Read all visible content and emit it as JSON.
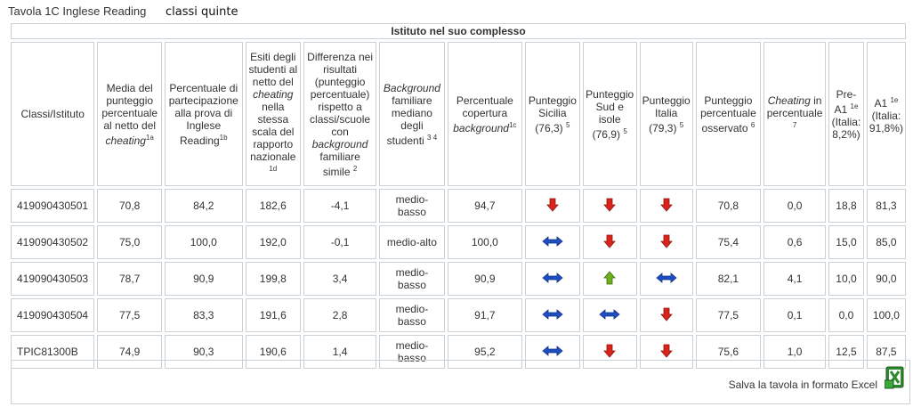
{
  "header": {
    "title": "Tavola 1C Inglese Reading",
    "subtitle": "classi quinte"
  },
  "table": {
    "group_header": "Istituto nel suo complesso",
    "columns": [
      {
        "html": "Classi/Istituto"
      },
      {
        "html": "Media del punteggio percentuale al netto del <i>cheating</i><sup>1a</sup>"
      },
      {
        "html": "Percentuale di partecipazione alla prova di Inglese Reading<sup>1b</sup>"
      },
      {
        "html": "Esiti degli studenti al netto del <i>cheating</i> nella stessa scala del rapporto nazionale <sup>1d</sup>"
      },
      {
        "html": "Differenza nei risultati (punteggio percentuale) rispetto a classi/scuole con <i>background</i> familiare simile <sup>2</sup>"
      },
      {
        "html": "<i>Background</i> familiare mediano degli studenti <sup>3 4</sup>"
      },
      {
        "html": "Percentuale copertura <i>background</i><sup>1c</sup>"
      },
      {
        "html": "Punteggio Sicilia (76,3) <sup>5</sup>"
      },
      {
        "html": "Punteggio Sud e isole (76,9) <sup>5</sup>"
      },
      {
        "html": "Punteggio Italia (79,3) <sup>5</sup>"
      },
      {
        "html": "Punteggio percentuale osservato <sup>6</sup>"
      },
      {
        "html": "<i>Cheating</i> in percentuale <sup>7</sup>"
      },
      {
        "html": "Pre-A1 <sup>1e</sup> (Italia: 8,2%)"
      },
      {
        "html": "A1 <sup>1e</sup> (Italia: 91,8%)"
      }
    ],
    "rows": [
      {
        "classe": "419090430501",
        "media": "70,8",
        "partecipazione": "84,2",
        "esiti": "182,6",
        "differenza": "-4,1",
        "background": "medio-basso",
        "copertura": "94,7",
        "sicilia": "down",
        "sud": "down",
        "italia": "down",
        "osservato": "70,8",
        "cheating": "0,0",
        "prea1": "18,8",
        "a1": "81,3"
      },
      {
        "classe": "419090430502",
        "media": "75,0",
        "partecipazione": "100,0",
        "esiti": "192,0",
        "differenza": "-0,1",
        "background": "medio-alto",
        "copertura": "100,0",
        "sicilia": "equal",
        "sud": "down",
        "italia": "down",
        "osservato": "75,4",
        "cheating": "0,6",
        "prea1": "15,0",
        "a1": "85,0"
      },
      {
        "classe": "419090430503",
        "media": "78,7",
        "partecipazione": "90,9",
        "esiti": "199,8",
        "differenza": "3,4",
        "background": "medio-basso",
        "copertura": "90,9",
        "sicilia": "equal",
        "sud": "up",
        "italia": "equal",
        "osservato": "82,1",
        "cheating": "4,1",
        "prea1": "10,0",
        "a1": "90,0"
      },
      {
        "classe": "419090430504",
        "media": "77,5",
        "partecipazione": "83,3",
        "esiti": "191,6",
        "differenza": "2,8",
        "background": "medio-basso",
        "copertura": "91,7",
        "sicilia": "equal",
        "sud": "equal",
        "italia": "down",
        "osservato": "77,5",
        "cheating": "0,1",
        "prea1": "0,0",
        "a1": "100,0"
      },
      {
        "classe": "TPIC81300B",
        "media": "74,9",
        "partecipazione": "90,3",
        "esiti": "190,6",
        "differenza": "1,4",
        "background": "medio-basso",
        "copertura": "95,2",
        "sicilia": "equal",
        "sud": "down",
        "italia": "down",
        "osservato": "75,6",
        "cheating": "1,0",
        "prea1": "12,5",
        "a1": "87,5"
      }
    ]
  },
  "footer": {
    "save_label": "Salva la tavola in formato Excel",
    "excel_icon": "excel-icon"
  },
  "colors": {
    "header_bg": "#e2e6e8",
    "border": "#c9d1d6",
    "arrow_down": "#d9241c",
    "arrow_up": "#6fae1e",
    "arrow_equal": "#1e4fc2"
  }
}
